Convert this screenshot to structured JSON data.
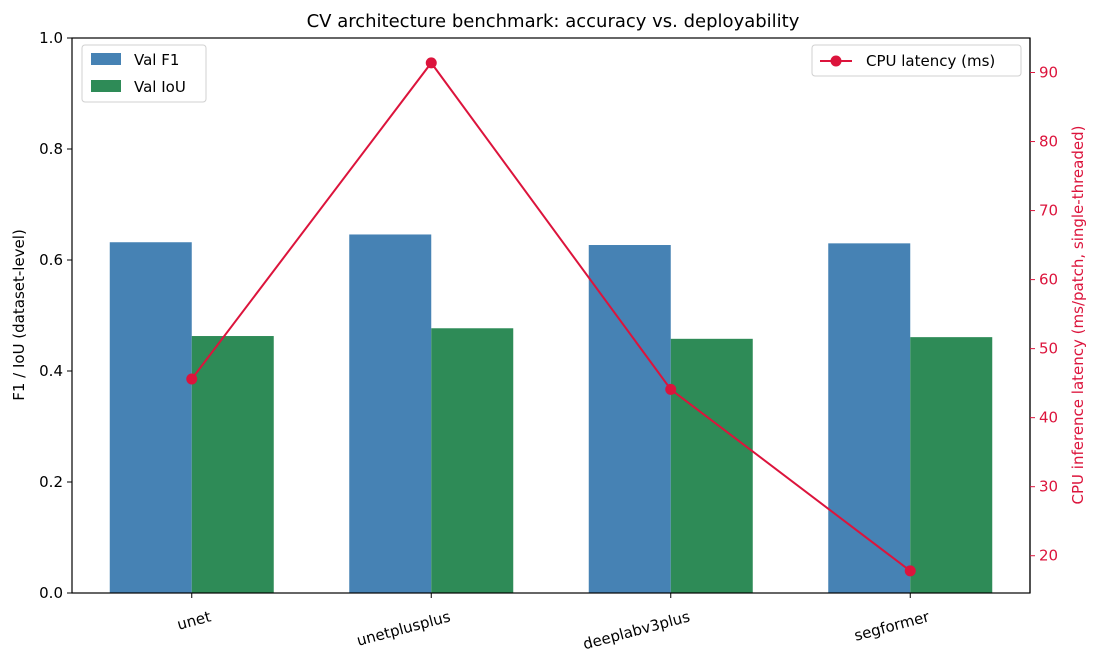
{
  "chart_data": {
    "type": "bar",
    "title": "CV architecture benchmark: accuracy vs. deployability",
    "categories": [
      "unet",
      "unetplusplus",
      "deeplabv3plus",
      "segformer"
    ],
    "series": [
      {
        "name": "Val F1",
        "values": [
          0.632,
          0.646,
          0.627,
          0.63
        ],
        "color": "#4682b4"
      },
      {
        "name": "Val IoU",
        "values": [
          0.463,
          0.477,
          0.458,
          0.461
        ],
        "color": "#2e8b57"
      }
    ],
    "line_series": {
      "name": "CPU latency (ms)",
      "values": [
        45.6,
        91.4,
        44.1,
        17.8
      ],
      "color": "#dc143c",
      "axis": "right"
    },
    "ylabel": "F1 / IoU (dataset-level)",
    "y2label": "CPU inference latency (ms/patch, single-threaded)",
    "ylim": [
      0,
      1.0
    ],
    "y2lim": [
      14.6,
      95.0
    ],
    "yticks": [
      "0.0",
      "0.2",
      "0.4",
      "0.6",
      "0.8",
      "1.0"
    ],
    "y2ticks": [
      "20",
      "30",
      "40",
      "50",
      "60",
      "70",
      "80",
      "90"
    ],
    "legend_left": "top-left",
    "legend_right": "top-right",
    "grid": false
  }
}
